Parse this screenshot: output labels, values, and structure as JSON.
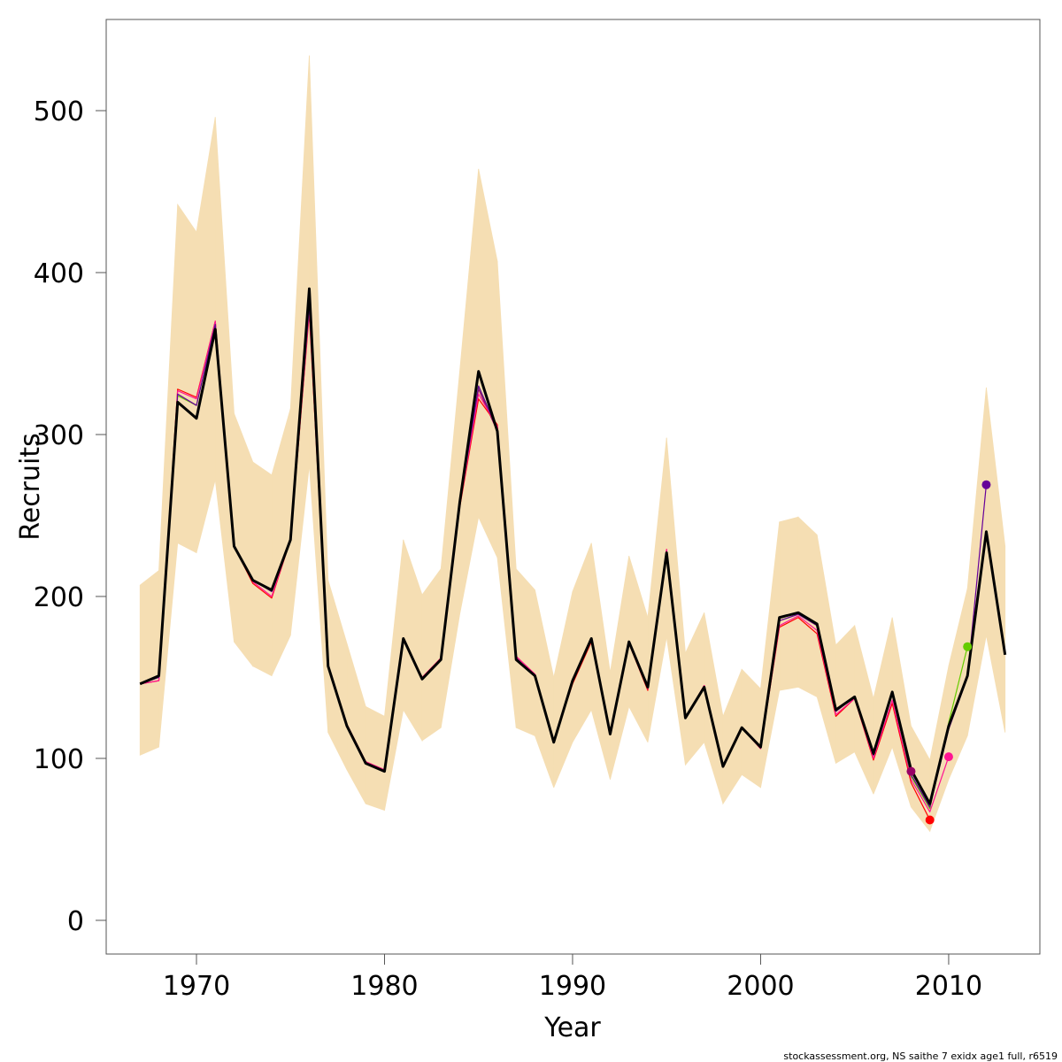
{
  "chart_data": {
    "type": "line",
    "xlabel": "Year",
    "ylabel": "Recruits",
    "footnote": "stockassessment.org, NS saithe 7 exidx age1 full, r6519",
    "x": [
      1967,
      1968,
      1969,
      1970,
      1971,
      1972,
      1973,
      1974,
      1975,
      1976,
      1977,
      1978,
      1979,
      1980,
      1981,
      1982,
      1983,
      1984,
      1985,
      1986,
      1987,
      1988,
      1989,
      1990,
      1991,
      1992,
      1993,
      1994,
      1995,
      1996,
      1997,
      1998,
      1999,
      2000,
      2001,
      2002,
      2003,
      2004,
      2005,
      2006,
      2007,
      2008,
      2009,
      2010,
      2011,
      2012,
      2013
    ],
    "band": {
      "color": "#f5deb3",
      "upper": [
        207,
        216,
        442,
        425,
        496,
        313,
        283,
        275,
        316,
        534,
        210,
        171,
        132,
        126,
        235,
        201,
        217,
        339,
        464,
        407,
        217,
        204,
        150,
        203,
        233,
        153,
        225,
        187,
        298,
        165,
        190,
        126,
        155,
        143,
        246,
        249,
        238,
        170,
        182,
        137,
        187,
        120,
        99,
        157,
        205,
        329,
        231
      ],
      "lower": [
        102,
        107,
        233,
        227,
        272,
        172,
        157,
        151,
        176,
        281,
        116,
        93,
        72,
        68,
        130,
        111,
        119,
        189,
        249,
        224,
        119,
        114,
        82,
        110,
        130,
        87,
        132,
        110,
        175,
        96,
        110,
        72,
        90,
        82,
        142,
        144,
        138,
        97,
        104,
        78,
        107,
        70,
        55,
        87,
        114,
        176,
        116
      ]
    },
    "series": [
      {
        "color": "#990066",
        "values": [
          146,
          151,
          320,
          310,
          365,
          231,
          210,
          204,
          235,
          383,
          157,
          120,
          97,
          92,
          174,
          149,
          161,
          258,
          328,
          302,
          161,
          151,
          110,
          148,
          174,
          115,
          172,
          144,
          227,
          125,
          144,
          95,
          119,
          107,
          187,
          190,
          183,
          130,
          138,
          103,
          141,
          92,
          null,
          null,
          null,
          null,
          null
        ]
      },
      {
        "color": "#ff0000",
        "values": [
          146,
          148,
          328,
          323,
          370,
          231,
          208,
          199,
          235,
          375,
          158,
          121,
          98,
          93,
          174,
          150,
          162,
          255,
          322,
          306,
          163,
          152,
          111,
          146,
          172,
          116,
          171,
          142,
          229,
          125,
          145,
          95,
          119,
          106,
          181,
          187,
          177,
          126,
          137,
          99,
          134,
          85,
          62,
          null,
          null,
          null,
          null
        ]
      },
      {
        "color": "#ff1493",
        "values": [
          146,
          148,
          327,
          322,
          370,
          231,
          209,
          200,
          235,
          377,
          158,
          121,
          98,
          93,
          174,
          150,
          162,
          256,
          325,
          305,
          163,
          152,
          111,
          147,
          173,
          116,
          171,
          143,
          229,
          125,
          145,
          95,
          119,
          106,
          182,
          188,
          179,
          127,
          137,
          100,
          136,
          87,
          67,
          101,
          null,
          null,
          null
        ]
      },
      {
        "color": "#66cc00",
        "values": [
          146,
          150,
          324,
          318,
          368,
          231,
          210,
          203,
          235,
          380,
          157,
          120,
          97,
          92,
          174,
          149,
          161,
          257,
          330,
          303,
          162,
          151,
          110,
          148,
          174,
          115,
          172,
          144,
          227,
          125,
          144,
          95,
          119,
          107,
          185,
          189,
          182,
          129,
          138,
          102,
          140,
          89,
          69,
          122,
          169,
          null,
          null
        ]
      },
      {
        "color": "#660099",
        "values": [
          146,
          150,
          325,
          318,
          368,
          231,
          210,
          203,
          235,
          380,
          157,
          120,
          97,
          92,
          174,
          149,
          161,
          257,
          330,
          303,
          162,
          151,
          110,
          148,
          174,
          115,
          172,
          144,
          227,
          125,
          144,
          95,
          119,
          107,
          185,
          189,
          182,
          129,
          138,
          102,
          140,
          90,
          70,
          118,
          150,
          269,
          null
        ]
      },
      {
        "color": "#000000",
        "values": [
          146,
          151,
          320,
          310,
          365,
          231,
          210,
          204,
          235,
          390,
          157,
          120,
          97,
          92,
          174,
          149,
          161,
          258,
          339,
          302,
          161,
          151,
          110,
          148,
          174,
          115,
          172,
          144,
          227,
          125,
          144,
          95,
          119,
          107,
          187,
          190,
          183,
          130,
          138,
          103,
          141,
          93,
          72,
          120,
          151,
          240,
          164
        ]
      }
    ],
    "xlim": [
      1965.2,
      2014.85
    ],
    "ylim": [
      -20.8,
      556.3
    ],
    "xticks": [
      1970,
      1980,
      1990,
      2000,
      2010
    ],
    "yticks": [
      0,
      100,
      200,
      300,
      400,
      500
    ]
  }
}
